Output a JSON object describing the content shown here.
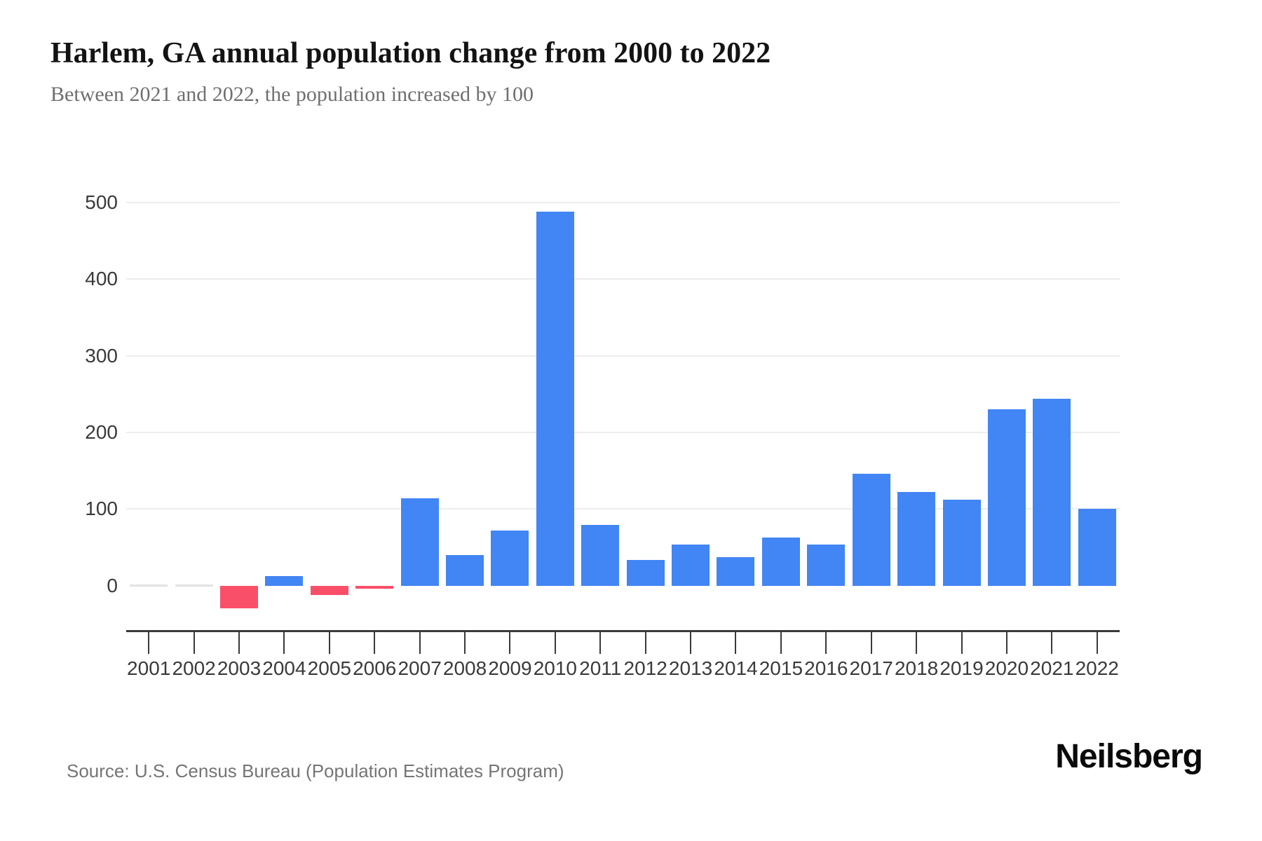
{
  "header": {
    "title": "Harlem, GA annual population change from 2000 to 2022",
    "subtitle": "Between 2021 and 2022, the population increased by 100"
  },
  "footer": {
    "source": "Source: U.S. Census Bureau (Population Estimates Program)",
    "brand": "Neilsberg"
  },
  "colors": {
    "positive_bar": "#4285F4",
    "negative_bar": "#FA4F68",
    "zero_bar": "#E3E3E3",
    "gridline": "#EDEDED",
    "axis_line": "#3A3A3A",
    "tick_label": "#3A3A3A",
    "title_text": "#131313",
    "subtitle_text": "#6F6F6F",
    "source_text": "#757575"
  },
  "chart_data": {
    "type": "bar",
    "title": "Harlem, GA annual population change from 2000 to 2022",
    "xlabel": "",
    "ylabel": "",
    "categories": [
      2001,
      2002,
      2003,
      2004,
      2005,
      2006,
      2007,
      2008,
      2009,
      2010,
      2011,
      2012,
      2013,
      2014,
      2015,
      2016,
      2017,
      2018,
      2019,
      2020,
      2021,
      2022
    ],
    "values": [
      0,
      0,
      -30,
      12,
      -12,
      -4,
      114,
      40,
      72,
      488,
      79,
      33,
      54,
      37,
      63,
      54,
      146,
      122,
      112,
      230,
      244,
      100
    ],
    "ylim": [
      -58,
      552
    ],
    "yticks": [
      0,
      100,
      200,
      300,
      400,
      500
    ],
    "gridlines": [
      100,
      200,
      300,
      400,
      500
    ],
    "grid": "horizontal-only",
    "legend": "none"
  }
}
